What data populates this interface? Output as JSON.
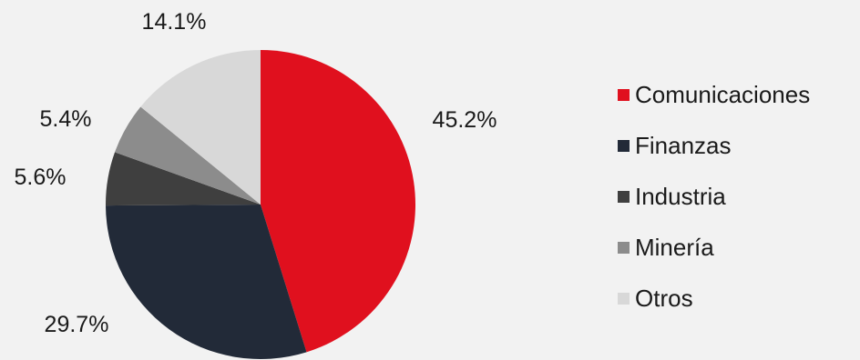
{
  "chart_data": {
    "type": "pie",
    "categories": [
      "Comunicaciones",
      "Finanzas",
      "Industria",
      "Minería",
      "Otros"
    ],
    "values": [
      45.2,
      29.7,
      5.6,
      5.4,
      14.1
    ],
    "value_labels": [
      "45.2%",
      "29.7%",
      "5.6%",
      "5.4%",
      "14.1%"
    ],
    "colors": [
      "#e0101e",
      "#222a38",
      "#3f3f3f",
      "#8c8c8c",
      "#d8d8d8"
    ],
    "start_angle": "12 o'clock",
    "direction": "clockwise",
    "legend_position": "right"
  }
}
